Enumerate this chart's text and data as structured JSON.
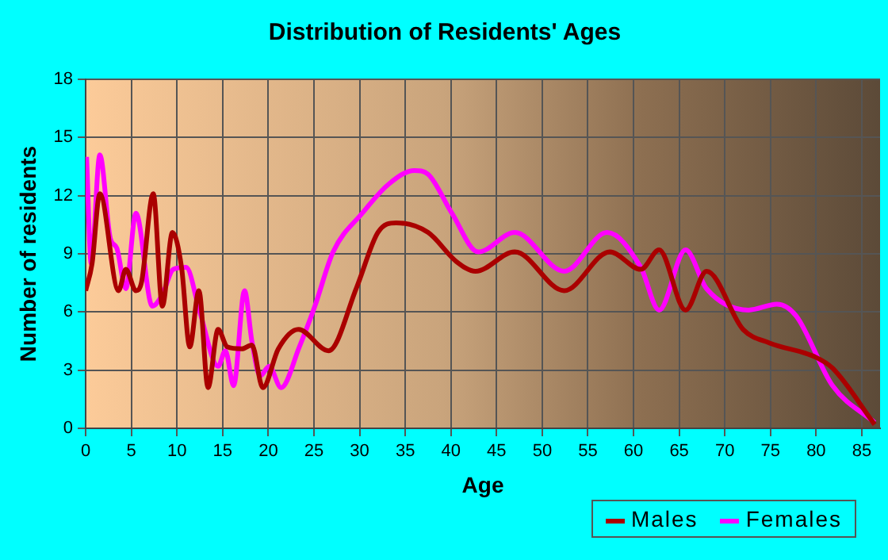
{
  "chart_data": {
    "type": "line",
    "title": "Distribution of Residents' Ages",
    "xlabel": "Age",
    "ylabel": "Number of residents",
    "xlim": [
      0,
      87
    ],
    "xticks": [
      0,
      5,
      10,
      15,
      20,
      25,
      30,
      35,
      40,
      45,
      50,
      55,
      60,
      65,
      70,
      75,
      80,
      85
    ],
    "ylim": [
      0,
      18
    ],
    "yticks": [
      0,
      3,
      6,
      9,
      12,
      15,
      18
    ],
    "grid": true,
    "legend": "bottom right",
    "marker": "none",
    "line_style": "solid",
    "series": [
      {
        "name": "Males",
        "color": "#aa0000",
        "x": [
          0,
          0.7,
          1.55,
          3.6,
          4.4,
          5.5,
          6.1,
          7.4,
          8.4,
          9.5,
          10.5,
          11.4,
          12.4,
          13.4,
          14.5,
          15.5,
          17.1,
          18.2,
          19.4,
          21.1,
          23.3,
          26.6,
          29.7,
          32,
          34,
          37.5,
          40.6,
          42.7,
          47,
          52.4,
          57.4,
          60.8,
          62.8,
          65.7,
          68,
          72,
          74.9,
          79.8,
          81.8,
          86.4
        ],
        "values": [
          7.1,
          8.5,
          12.1,
          7.1,
          8.2,
          7.1,
          7.5,
          12.1,
          6.3,
          10.1,
          8.3,
          4.2,
          7.1,
          2.1,
          5.1,
          4.2,
          4.1,
          4.3,
          2.1,
          4.1,
          5.1,
          4.0,
          7.3,
          10.1,
          10.6,
          10.1,
          8.6,
          8.1,
          9.1,
          7.1,
          9.1,
          8.2,
          9.2,
          6.1,
          8.1,
          5.1,
          4.4,
          3.7,
          3.1,
          0.2
        ]
      },
      {
        "name": "Females",
        "color": "#ff00ff",
        "x": [
          0.1,
          0.6,
          1.55,
          2.7,
          3.4,
          4.4,
          5.5,
          7.3,
          8.4,
          9.6,
          11,
          12.5,
          14.5,
          15.3,
          16.2,
          17.4,
          18.2,
          19.1,
          20.1,
          21.4,
          23.4,
          25.1,
          27.1,
          30.3,
          33.2,
          36,
          37.5,
          40.1,
          43,
          47,
          52.4,
          57.1,
          60.8,
          62.8,
          65.7,
          68,
          72.6,
          75.7,
          77.8,
          81.8,
          86.4
        ],
        "values": [
          14.0,
          8.5,
          14.1,
          9.8,
          9.3,
          7.2,
          11.1,
          6.3,
          6.9,
          8.2,
          8.3,
          6.0,
          3.2,
          4.0,
          2.2,
          7.1,
          4.5,
          2.7,
          3.2,
          2.1,
          4.2,
          6.3,
          9.1,
          11.1,
          12.6,
          13.3,
          13.1,
          11.1,
          9.1,
          10.1,
          8.1,
          10.1,
          8.3,
          6.1,
          9.2,
          7.2,
          6.1,
          6.4,
          5.8,
          2.2,
          0.3
        ]
      }
    ]
  }
}
